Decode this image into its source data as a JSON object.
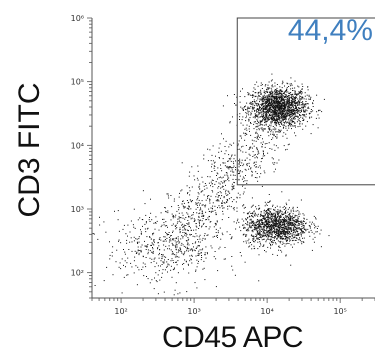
{
  "chart_data": {
    "type": "scatter",
    "title": "",
    "xlabel": "CD45 APC",
    "ylabel": "CD3 FITC",
    "x_scale": "log",
    "y_scale": "log",
    "xlim": [
      40,
      300000
    ],
    "ylim": [
      40,
      1000000
    ],
    "x_ticks": [
      {
        "value": 100,
        "label": "10²"
      },
      {
        "value": 1000,
        "label": "10³"
      },
      {
        "value": 10000,
        "label": "10⁴"
      },
      {
        "value": 100000,
        "label": "10⁵"
      }
    ],
    "y_ticks": [
      {
        "value": 100,
        "label": "10²"
      },
      {
        "value": 1000,
        "label": "10³"
      },
      {
        "value": 10000,
        "label": "10⁴"
      },
      {
        "value": 100000,
        "label": "10⁵"
      },
      {
        "value": 1000000,
        "label": "10⁶"
      }
    ],
    "grid": false,
    "point_color": "#111111",
    "gate": {
      "x_min": 3900,
      "x_max": 300000,
      "y_min": 2400,
      "y_max": 1000000,
      "label": "44,4%",
      "label_color": "#3f7fbf"
    },
    "populations": [
      {
        "center_x": 14000,
        "center_y": 40000,
        "count": 1700
      },
      {
        "center_x": 13000,
        "center_y": 550,
        "count": 1300
      },
      {
        "center_x": 400,
        "center_y": 250,
        "count": 500
      }
    ]
  }
}
